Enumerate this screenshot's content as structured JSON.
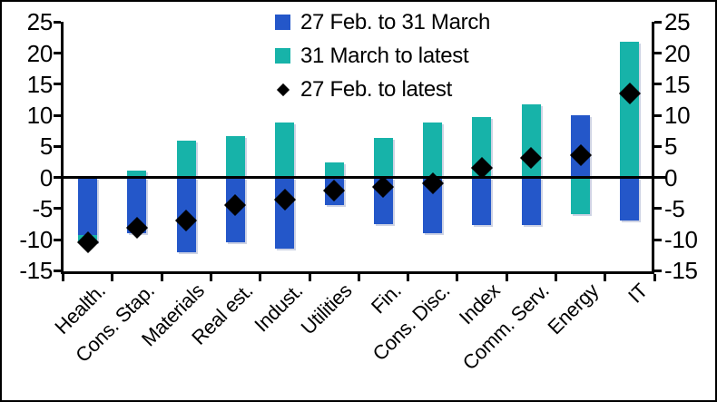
{
  "chart_data": {
    "type": "bar",
    "subtype": "stacked-diverging-with-scatter-overlay",
    "title": "",
    "categories": [
      "Health.",
      "Cons. Stap.",
      "Materials",
      "Real est.",
      "Indust.",
      "Utilities",
      "Fin.",
      "Cons. Disc.",
      "Index",
      "Comm. Serv.",
      "Energy",
      "IT"
    ],
    "series": [
      {
        "name": "27 Feb. to 31 March",
        "type": "bar",
        "marker": "square",
        "color": "#2457C9",
        "values": [
          -9.2,
          -9.0,
          -12.1,
          -10.4,
          -11.4,
          -4.4,
          -7.5,
          -9.0,
          -7.6,
          -7.7,
          10.0,
          -7.0
        ]
      },
      {
        "name": "31 March to latest",
        "type": "bar",
        "marker": "square",
        "color": "#17B3A9",
        "values": [
          -1.3,
          1.1,
          5.9,
          6.6,
          8.9,
          2.4,
          6.4,
          8.8,
          9.7,
          11.7,
          -5.9,
          21.8
        ]
      },
      {
        "name": "27 Feb. to latest",
        "type": "scatter",
        "marker": "diamond",
        "color": "#000000",
        "values": [
          -10.4,
          -8.1,
          -7.0,
          -4.4,
          -3.6,
          -2.1,
          -1.6,
          -1.0,
          1.5,
          3.2,
          3.6,
          13.5
        ]
      }
    ],
    "ylim": [
      -15,
      25
    ],
    "yticks": [
      25,
      20,
      15,
      10,
      5,
      0,
      -5,
      -10,
      -15
    ],
    "y_axis_sides": [
      "left",
      "right"
    ],
    "xlabel": "",
    "ylabel": "",
    "legend_position": "top-center",
    "grid": false,
    "zero_line": true,
    "axis_color": "#000000",
    "background_color": "#FFFFFF"
  }
}
